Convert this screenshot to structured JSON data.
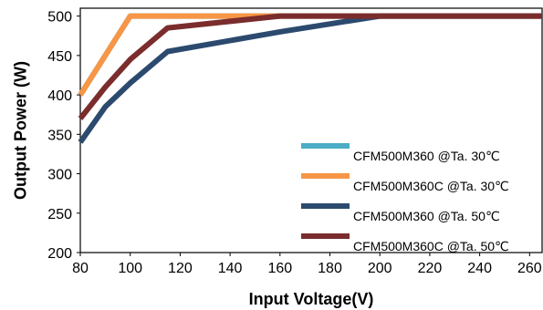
{
  "chart_data": {
    "type": "line",
    "title": "",
    "xlabel": "Input Voltage(V)",
    "ylabel": "Output Power (W)",
    "xlim": [
      80,
      265
    ],
    "ylim": [
      200,
      510
    ],
    "xticks": [
      80,
      100,
      120,
      140,
      160,
      180,
      200,
      220,
      240,
      260
    ],
    "yticks": [
      200,
      250,
      300,
      350,
      400,
      450,
      500
    ],
    "grid": false,
    "legend_position": "bottom-right",
    "series": [
      {
        "name": "CFM500M360 @Ta. 30℃",
        "color": "#4bacc6",
        "x": [
          80,
          100,
          265
        ],
        "y": [
          400,
          500,
          500
        ]
      },
      {
        "name": "CFM500M360C @Ta. 30℃",
        "color": "#f79646",
        "x": [
          80,
          100,
          265
        ],
        "y": [
          400,
          500,
          500
        ]
      },
      {
        "name": "CFM500M360 @Ta. 50℃",
        "color": "#2c4a6e",
        "x": [
          80,
          90,
          100,
          115,
          160,
          200,
          265
        ],
        "y": [
          340,
          385,
          415,
          455,
          480,
          500,
          500
        ]
      },
      {
        "name": "CFM500M360C @Ta. 50℃",
        "color": "#7b2c2c",
        "x": [
          80,
          90,
          100,
          115,
          160,
          265
        ],
        "y": [
          370,
          410,
          445,
          485,
          500,
          500
        ]
      }
    ]
  }
}
